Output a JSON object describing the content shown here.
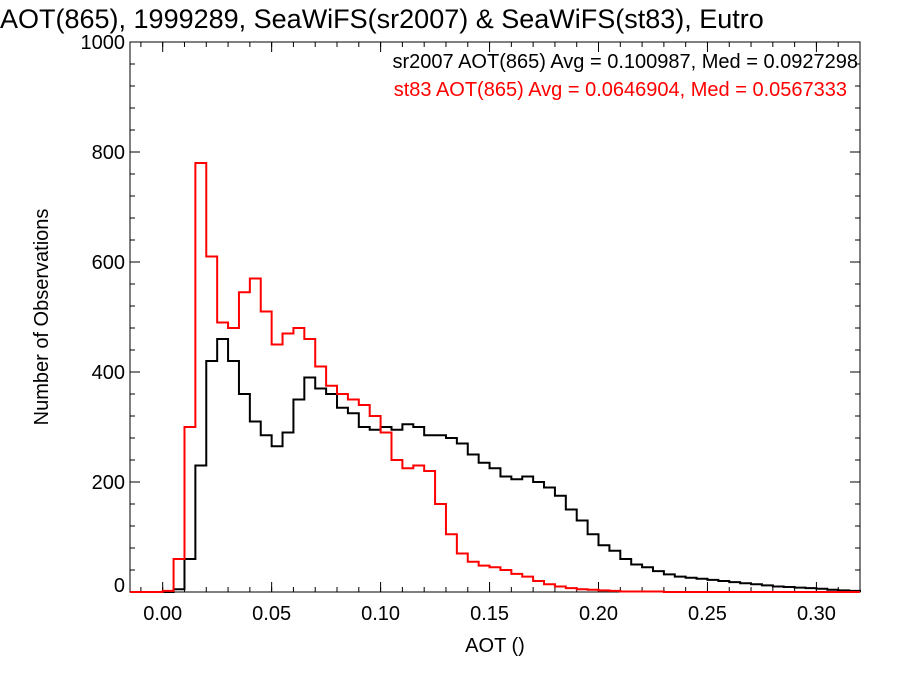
{
  "chart_data": {
    "type": "line",
    "title": "AOT(865), 1999289, SeaWiFS(sr2007) & SeaWiFS(st83), Eutro",
    "xlabel": "AOT ()",
    "ylabel": "Number of Observations",
    "xlim": [
      -0.015,
      0.32
    ],
    "ylim": [
      0,
      1000
    ],
    "x_ticks": [
      "0.00",
      "0.05",
      "0.10",
      "0.15",
      "0.20",
      "0.25",
      "0.30"
    ],
    "y_ticks": [
      "0",
      "200",
      "400",
      "600",
      "800",
      "1000"
    ],
    "grid": false,
    "x": [
      0.0,
      0.005,
      0.01,
      0.015,
      0.02,
      0.025,
      0.03,
      0.035,
      0.04,
      0.045,
      0.05,
      0.055,
      0.06,
      0.065,
      0.07,
      0.075,
      0.08,
      0.085,
      0.09,
      0.095,
      0.1,
      0.105,
      0.11,
      0.115,
      0.12,
      0.125,
      0.13,
      0.135,
      0.14,
      0.145,
      0.15,
      0.155,
      0.16,
      0.165,
      0.17,
      0.175,
      0.18,
      0.185,
      0.19,
      0.195,
      0.2,
      0.205,
      0.21,
      0.215,
      0.22,
      0.225,
      0.23,
      0.235,
      0.24,
      0.245,
      0.25,
      0.255,
      0.26,
      0.265,
      0.27,
      0.275,
      0.28,
      0.285,
      0.29,
      0.295,
      0.3,
      0.305,
      0.31,
      0.315
    ],
    "series": [
      {
        "name": "sr2007",
        "color": "#000000",
        "summary": "sr2007 AOT(865) Avg = 0.100987, Med = 0.0927298",
        "values": [
          0,
          5,
          60,
          230,
          420,
          460,
          420,
          360,
          310,
          285,
          265,
          290,
          350,
          390,
          370,
          360,
          335,
          325,
          300,
          295,
          300,
          295,
          305,
          300,
          285,
          285,
          280,
          270,
          250,
          235,
          225,
          210,
          205,
          210,
          200,
          190,
          175,
          150,
          130,
          105,
          85,
          75,
          60,
          50,
          45,
          38,
          32,
          28,
          26,
          24,
          22,
          20,
          18,
          16,
          14,
          12,
          10,
          9,
          8,
          7,
          6,
          4,
          3,
          2
        ]
      },
      {
        "name": "st83",
        "color": "#ff0000",
        "summary": "st83 AOT(865) Avg = 0.0646904, Med = 0.0567333",
        "values": [
          2,
          60,
          300,
          780,
          610,
          490,
          480,
          545,
          570,
          510,
          450,
          470,
          480,
          460,
          410,
          375,
          360,
          350,
          340,
          320,
          290,
          240,
          225,
          230,
          220,
          160,
          105,
          70,
          55,
          48,
          45,
          40,
          33,
          28,
          20,
          14,
          10,
          7,
          5,
          4,
          3,
          2,
          1,
          1,
          1,
          1,
          0,
          0,
          0,
          0,
          0,
          0,
          0,
          0,
          0,
          0,
          0,
          0,
          0,
          0,
          0,
          0,
          0,
          0
        ]
      }
    ]
  }
}
